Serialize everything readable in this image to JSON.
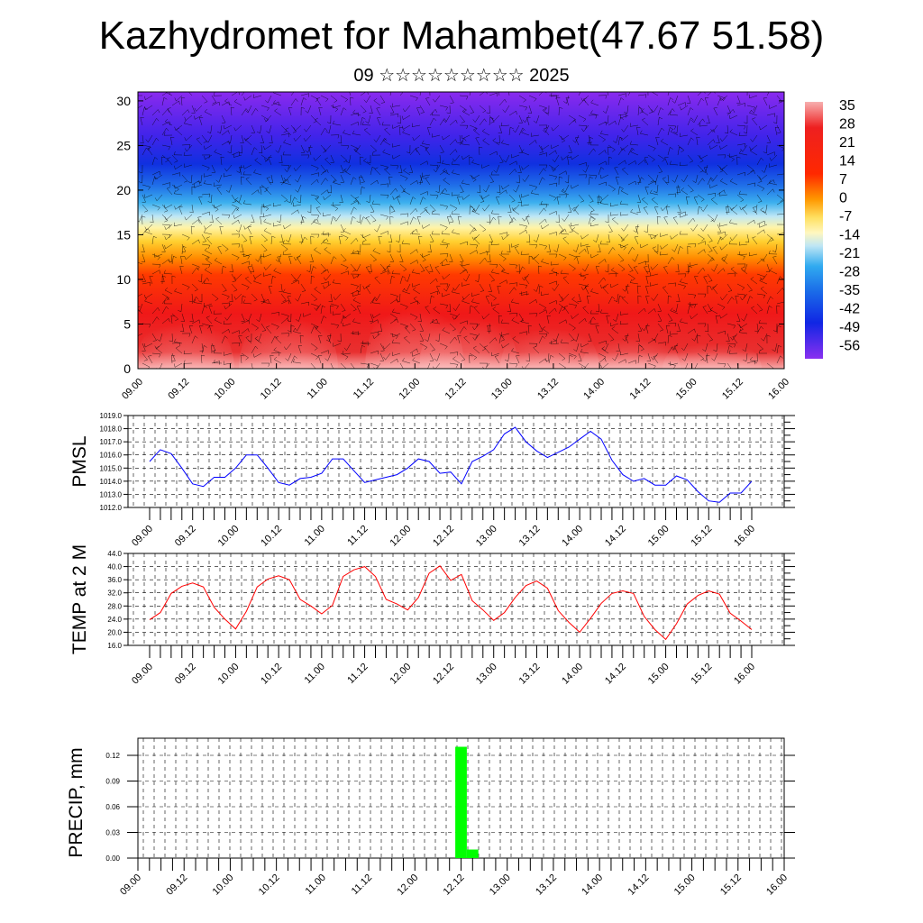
{
  "title": "Kazhydromet for Mahambet(47.67 51.58)",
  "subtitle": "09 ☆☆☆☆☆☆☆☆☆ 2025",
  "time_labels": [
    "09.00",
    "09.12",
    "10.00",
    "10.12",
    "11.00",
    "11.12",
    "12.00",
    "12.12",
    "13.00",
    "13.12",
    "14.00",
    "14.12",
    "15.00",
    "15.12",
    "16.00"
  ],
  "colorbar": {
    "labels": [
      "35",
      "28",
      "21",
      "14",
      "7",
      "0",
      "-7",
      "-14",
      "-21",
      "-28",
      "-35",
      "-42",
      "-49",
      "-56"
    ]
  },
  "chart_data": [
    {
      "type": "heatmap",
      "name": "temperature-wind-cross-section",
      "ylim": [
        0,
        31
      ],
      "y_ticks": [
        0,
        5,
        10,
        15,
        20,
        25,
        30
      ],
      "y_tick_labels": [
        "0",
        "5",
        "10",
        "15",
        "20",
        "25",
        "30"
      ],
      "x_tick_labels": [
        "09.00",
        "09.12",
        "10.00",
        "10.12",
        "11.00",
        "11.12",
        "12.00",
        "12.12",
        "13.00",
        "13.12",
        "14.00",
        "14.12",
        "15.00",
        "15.12",
        "16.00"
      ],
      "colorbar_range": [
        -56,
        35
      ],
      "has_wind_barbs": true
    },
    {
      "type": "line",
      "ylabel": "PMSL",
      "ylim": [
        1012.0,
        1019.0
      ],
      "y_ticks": [
        1012.0,
        1013.0,
        1014.0,
        1015.0,
        1016.0,
        1017.0,
        1018.0,
        1019.0
      ],
      "y_tick_labels": [
        "1012.0",
        "1013.0",
        "1014.0",
        "1015.0",
        "1016.0",
        "1017.0",
        "1018.0",
        "1019.0"
      ],
      "x_tick_labels": [
        "09.00",
        "09.12",
        "10.00",
        "10.12",
        "11.00",
        "11.12",
        "12.00",
        "12.12",
        "13.00",
        "13.12",
        "14.00",
        "14.12",
        "15.00",
        "15.12",
        "16.00"
      ],
      "color": "#0000ff",
      "series": [
        {
          "values": [
            1015.5,
            1016.4,
            1016.1,
            1015.0,
            1013.8,
            1013.6,
            1014.3,
            1014.3,
            1015.0,
            1016.0,
            1016.0,
            1015.0,
            1013.9,
            1013.7,
            1014.2,
            1014.3,
            1014.6,
            1015.7,
            1015.7,
            1014.8,
            1013.9,
            1014.1,
            1014.3,
            1014.5,
            1015.0,
            1015.7,
            1015.5,
            1014.6,
            1014.7,
            1013.8,
            1015.5,
            1015.9,
            1016.4,
            1017.6,
            1018.1,
            1017.0,
            1016.3,
            1015.8,
            1016.2,
            1016.6,
            1017.2,
            1017.8,
            1017.2,
            1015.6,
            1014.5,
            1014.0,
            1014.2,
            1013.7,
            1013.7,
            1014.4,
            1014.1,
            1013.2,
            1012.5,
            1012.4,
            1013.1,
            1013.1,
            1014.0
          ]
        }
      ]
    },
    {
      "type": "line",
      "ylabel": "TEMP at 2 M",
      "ylim": [
        16.0,
        44.0
      ],
      "y_ticks": [
        16,
        20,
        24,
        28,
        32,
        36,
        40,
        44
      ],
      "y_tick_labels": [
        "16.0",
        "20.0",
        "24.0",
        "28.0",
        "32.0",
        "36.0",
        "40.0",
        "44.0"
      ],
      "x_tick_labels": [
        "09.00",
        "09.12",
        "10.00",
        "10.12",
        "11.00",
        "11.12",
        "12.00",
        "12.12",
        "13.00",
        "13.12",
        "14.00",
        "14.12",
        "15.00",
        "15.12",
        "16.00"
      ],
      "color": "#ff0000",
      "series": [
        {
          "values": [
            23.8,
            26.0,
            31.8,
            34.0,
            35.0,
            33.8,
            27.6,
            24.0,
            21.0,
            26.4,
            33.8,
            36.2,
            37.2,
            36.0,
            30.0,
            28.0,
            25.6,
            28.2,
            37.0,
            39.0,
            40.0,
            37.0,
            30.0,
            28.6,
            26.8,
            30.6,
            38.0,
            40.2,
            35.8,
            37.6,
            29.6,
            26.8,
            23.6,
            26.0,
            30.6,
            34.2,
            35.6,
            33.4,
            26.6,
            23.0,
            20.0,
            24.2,
            28.8,
            31.8,
            32.6,
            31.8,
            24.8,
            20.8,
            17.8,
            22.6,
            28.6,
            31.2,
            32.6,
            31.6,
            25.8,
            23.4,
            20.8
          ]
        }
      ]
    },
    {
      "type": "bar",
      "ylabel": "PRECIP, mm",
      "ylim": [
        0.0,
        0.14
      ],
      "y_ticks": [
        0.0,
        0.03,
        0.06,
        0.09,
        0.12
      ],
      "y_tick_labels": [
        "0.00",
        "0.03",
        "0.06",
        "0.09",
        "0.12"
      ],
      "x_tick_labels": [
        "09.00",
        "09.12",
        "10.00",
        "10.12",
        "11.00",
        "11.12",
        "12.00",
        "12.12",
        "13.00",
        "13.12",
        "14.00",
        "14.12",
        "15.00",
        "15.12",
        "16.00"
      ],
      "color": "#00ff00",
      "bars": [
        {
          "x": "12.12",
          "value": 0.13
        },
        {
          "x": "12.15",
          "value": 0.01
        }
      ]
    }
  ]
}
